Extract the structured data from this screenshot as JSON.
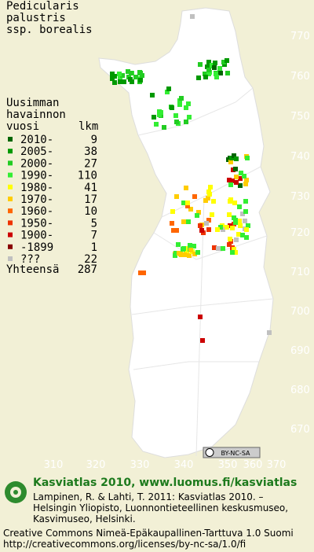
{
  "title": [
    "Pedicularis",
    "palustris",
    "ssp. borealis"
  ],
  "legend": {
    "header": [
      "Uusimman",
      "havainnon",
      "vuosi"
    ],
    "count_header": "lkm",
    "rows": [
      {
        "label": "2010-",
        "count": "9",
        "color": "#006600"
      },
      {
        "label": "2005-",
        "count": "38",
        "color": "#009900"
      },
      {
        "label": "2000-",
        "count": "27",
        "color": "#22cc22"
      },
      {
        "label": "1990-",
        "count": "110",
        "color": "#33ee33"
      },
      {
        "label": "1980-",
        "count": "41",
        "color": "#ffff00"
      },
      {
        "label": "1970-",
        "count": "17",
        "color": "#ffcc00"
      },
      {
        "label": "1960-",
        "count": "10",
        "color": "#ff6600"
      },
      {
        "label": "1950-",
        "count": "5",
        "color": "#ee3300"
      },
      {
        "label": "1900-",
        "count": "7",
        "color": "#cc0000"
      },
      {
        "label": "-1899",
        "count": "1",
        "color": "#880000"
      },
      {
        "label": "???",
        "count": "22",
        "color": "#c0c0c0"
      }
    ],
    "total_label": "Yhteensä",
    "total": "287"
  },
  "map": {
    "xticks": [
      310,
      320,
      330,
      340,
      350,
      360,
      370
    ],
    "yticks": [
      770,
      760,
      750,
      740,
      730,
      720,
      710,
      700,
      690,
      680,
      670
    ],
    "license_badge": "BY-NC-SA"
  },
  "footer": {
    "site": "Kasviatlas 2010, www.luomus.fi/kasviatlas",
    "citation": [
      "Lampinen, R. & Lahti, T. 2011: Kasviatlas 2010. –",
      "Helsingin Yliopisto, Luonnontieteellinen keskusmuseo,",
      "Kasvimuseo, Helsinki."
    ],
    "license": [
      "Creative Commons Nimeä-Epäkaupallinen-Tarttuva 1.0 Suomi",
      "http://creativecommons.org/licenses/by-nc-sa/1.0/fi"
    ]
  }
}
